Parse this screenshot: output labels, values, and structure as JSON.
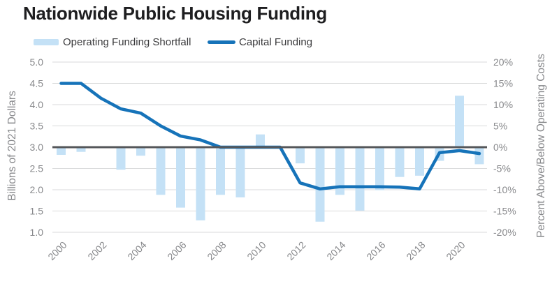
{
  "title": "Nationwide Public Housing Funding",
  "legend": {
    "items": [
      {
        "label": "Operating Funding Shortfall",
        "swatch": "bar-swatch",
        "color": "#c4e1f6"
      },
      {
        "label": "Capital Funding",
        "swatch": "line-swatch",
        "color": "#1673b9"
      }
    ],
    "position": "top-left"
  },
  "chart_data": {
    "type": "bar",
    "subtype": "dual-axis bar + line",
    "title": "Nationwide Public Housing Funding",
    "x": [
      2000,
      2001,
      2002,
      2003,
      2004,
      2005,
      2006,
      2007,
      2008,
      2009,
      2010,
      2011,
      2012,
      2013,
      2014,
      2015,
      2016,
      2017,
      2018,
      2019,
      2020,
      2021
    ],
    "x_tick_labels": [
      "2000",
      "2002",
      "2004",
      "2006",
      "2008",
      "2010",
      "2012",
      "2014",
      "2016",
      "2018",
      "2020"
    ],
    "series": [
      {
        "name": "Operating Funding Shortfall",
        "type": "bar",
        "axis": "right",
        "unit": "percent above/below operating costs",
        "color": "#c4e1f6",
        "values": [
          -1.8,
          -1.1,
          0,
          -5.3,
          -2.0,
          -11.2,
          -14.2,
          -17.2,
          -11.2,
          -11.8,
          3.0,
          0,
          -3.8,
          -17.5,
          -11.2,
          -14.9,
          -10.1,
          -7.0,
          -6.7,
          -3.2,
          12.1,
          -4.0
        ]
      },
      {
        "name": "Capital Funding",
        "type": "line",
        "axis": "left",
        "unit": "billions of 2021 dollars",
        "color": "#1673b9",
        "values": [
          4.5,
          4.5,
          4.15,
          3.9,
          3.8,
          3.5,
          3.26,
          3.17,
          3.0,
          3.0,
          3.0,
          3.0,
          2.16,
          2.02,
          2.07,
          2.07,
          2.07,
          2.06,
          2.02,
          2.87,
          2.92,
          2.85
        ]
      }
    ],
    "left_axis": {
      "label": "Billions of 2021 Dollars",
      "min": 1.0,
      "max": 5.0,
      "ticks": [
        "5.0",
        "4.5",
        "4.0",
        "3.5",
        "3.0",
        "2.5",
        "2.0",
        "1.5",
        "1.0"
      ],
      "tick_values": [
        5.0,
        4.5,
        4.0,
        3.5,
        3.0,
        2.5,
        2.0,
        1.5,
        1.0
      ]
    },
    "right_axis": {
      "label": "Percent Above/Below Operating Costs",
      "min": -20,
      "max": 20,
      "ticks": [
        "20%",
        "15%",
        "10%",
        "5%",
        "0%",
        "-5%",
        "-10%",
        "-15%",
        "-20%"
      ],
      "tick_values": [
        20,
        15,
        10,
        5,
        0,
        -5,
        -10,
        -15,
        -20
      ]
    },
    "baseline": {
      "left_value": 3.0,
      "right_value": 0
    },
    "grid": true,
    "legend_position": "top-left"
  },
  "colors": {
    "bar": "#c4e1f6",
    "line": "#1673b9",
    "zero_line": "#55575a",
    "gridline": "#d9dadb",
    "tick_text": "#87888b",
    "axis_title_text": "#87888b",
    "title_text": "#1e1e20",
    "legend_text": "#3a3a3c",
    "background": "#ffffff"
  }
}
